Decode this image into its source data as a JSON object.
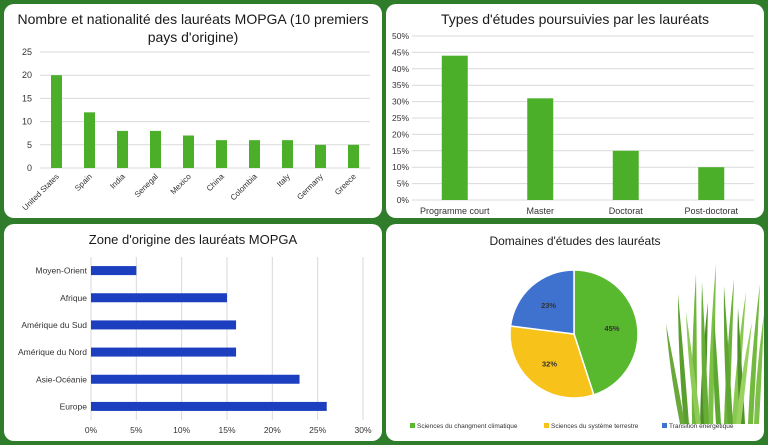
{
  "charts": {
    "nationalite": {
      "title": "Nombre et nationalité des lauréats MOPGA (10 premiers pays d'origine)",
      "chart_data": {
        "type": "bar",
        "categories": [
          "United States",
          "Spain",
          "India",
          "Senegal",
          "Mexico",
          "China",
          "Colombia",
          "Italy",
          "Germany",
          "Greece"
        ],
        "values": [
          20,
          12,
          8,
          8,
          7,
          6,
          6,
          6,
          5,
          5
        ],
        "ylim": [
          0,
          25
        ],
        "yticks": [
          0,
          5,
          10,
          15,
          20,
          25
        ],
        "color": "#4caf2a"
      }
    },
    "etudes": {
      "title": "Types d'études poursuivies par les lauréats",
      "chart_data": {
        "type": "bar",
        "categories": [
          "Programme court",
          "Master",
          "Doctorat",
          "Post-doctorat"
        ],
        "values": [
          44,
          31,
          15,
          10
        ],
        "ylim": [
          0,
          50
        ],
        "yticks": [
          "0%",
          "5%",
          "10%",
          "15%",
          "20%",
          "25%",
          "30%",
          "35%",
          "40%",
          "45%",
          "50%"
        ],
        "color": "#4caf2a"
      }
    },
    "zone": {
      "title": "Zone d'origine des lauréats MOPGA",
      "chart_data": {
        "type": "bar",
        "orientation": "horizontal",
        "categories": [
          "Moyen-Orient",
          "Afrique",
          "Amérique du Sud",
          "Amérique du Nord",
          "Asie-Océanie",
          "Europe"
        ],
        "values": [
          5,
          15,
          16,
          16,
          23,
          26
        ],
        "xlim": [
          0,
          30
        ],
        "xticks": [
          "0%",
          "5%",
          "10%",
          "15%",
          "20%",
          "25%",
          "30%"
        ],
        "color": "#1c3fc0"
      }
    },
    "domaines": {
      "title": "Domaines d'études des lauréats",
      "chart_data": {
        "type": "pie",
        "slices": [
          {
            "label": "Sciences du changment climatique",
            "value": 45,
            "text": "45%",
            "color": "#58b82e"
          },
          {
            "label": "Sciences du système terrestre",
            "value": 32,
            "text": "32%",
            "color": "#f7c21a"
          },
          {
            "label": "Transition énergétique",
            "value": 23,
            "text": "23%",
            "color": "#3f72cf"
          }
        ]
      }
    }
  }
}
